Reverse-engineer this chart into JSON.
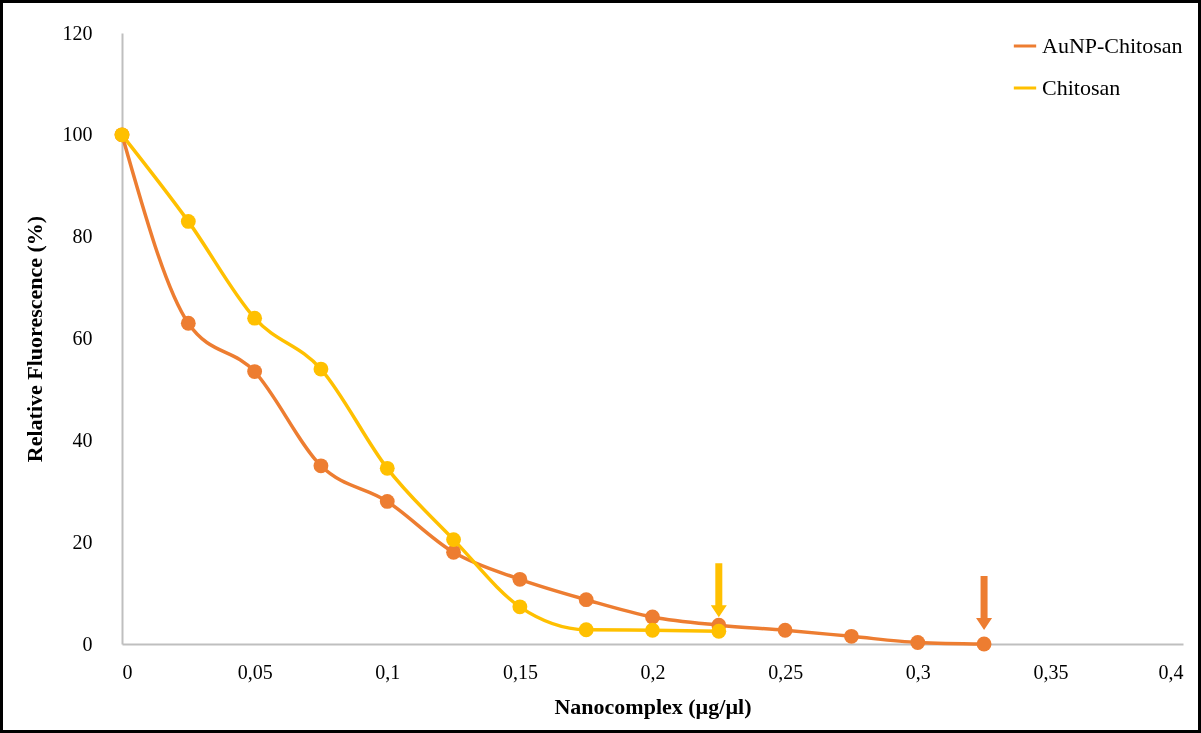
{
  "chart_data": {
    "type": "line",
    "xlabel": "Nanocomplex (µg/µl)",
    "ylabel": "Relative Fluorescence (%)",
    "series": [
      {
        "name": "AuNP-Chitosan",
        "color": "#ed7d31",
        "x": [
          0,
          0.025,
          0.05,
          0.075,
          0.1,
          0.125,
          0.15,
          0.175,
          0.2,
          0.225,
          0.25,
          0.275,
          0.3,
          0.325
        ],
        "values": [
          100,
          63,
          53.5,
          35,
          28,
          18,
          12.7,
          8.7,
          5.3,
          3.7,
          2.7,
          1.5,
          0.3,
          0
        ]
      },
      {
        "name": "Chitosan",
        "color": "#ffc000",
        "x": [
          0,
          0.025,
          0.05,
          0.075,
          0.1,
          0.125,
          0.15,
          0.175,
          0.2,
          0.225
        ],
        "values": [
          100,
          83,
          64,
          54,
          34.5,
          20.5,
          7.3,
          2.8,
          2.7,
          2.5
        ]
      }
    ],
    "xlim": [
      0,
      0.4
    ],
    "xticks": [
      0,
      {
        "value": 0.05,
        "label": "0,05"
      },
      {
        "value": 0.1,
        "label": "0,1"
      },
      {
        "value": 0.15,
        "label": "0,15"
      },
      {
        "value": 0.2,
        "label": "0,2"
      },
      {
        "value": 0.25,
        "label": "0,25"
      },
      {
        "value": 0.3,
        "label": "0,3"
      },
      {
        "value": 0.35,
        "label": "0,35"
      },
      {
        "value": 0.4,
        "label": "0,4"
      }
    ],
    "ylim": [
      0,
      120
    ],
    "yticks": [
      0,
      20,
      40,
      60,
      80,
      100,
      120
    ],
    "grid": false,
    "legend": "top right",
    "marker": "circle",
    "line_style": "solid"
  }
}
